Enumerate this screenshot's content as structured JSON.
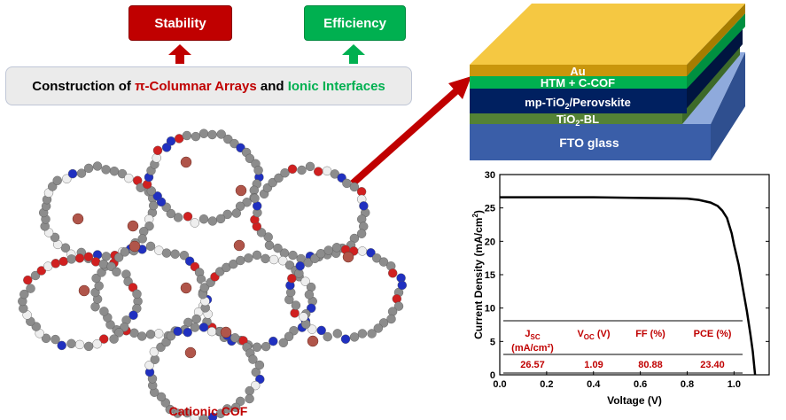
{
  "tags": {
    "stability": "Stability",
    "efficiency": "Efficiency",
    "stability_color": "#c00000",
    "efficiency_color": "#00b050"
  },
  "banner": {
    "prefix": "Construction of ",
    "part1": "π-Columnar Arrays",
    "middle": " and ",
    "part2": "Ionic Interfaces"
  },
  "structure": {
    "label": "Cationic COF"
  },
  "device": {
    "layers": [
      {
        "label": "Au",
        "color": "#d4a017"
      },
      {
        "label": "HTM + C-COF",
        "color": "#00b050"
      },
      {
        "label": "mp-TiO",
        "sub": "2",
        "suffix": "/Perovskite",
        "color": "#002060"
      },
      {
        "label": "TiO",
        "sub": "2",
        "suffix": "-BL",
        "color": "#548235"
      },
      {
        "label": "FTO glass",
        "color": "#3a5ea8"
      }
    ]
  },
  "chart_data": {
    "type": "line",
    "xlabel": "Voltage (V)",
    "ylabel": "Current Density (mA/cm",
    "ylabel_sup": "2",
    "ylabel_end": ")",
    "xlim": [
      0,
      1.15
    ],
    "ylim": [
      0,
      30
    ],
    "xticks": [
      "0.0",
      "0.2",
      "0.4",
      "0.6",
      "0.8",
      "1.0"
    ],
    "yticks": [
      "0",
      "5",
      "10",
      "15",
      "20",
      "25",
      "30"
    ],
    "series": [
      {
        "x": [
          0,
          0.2,
          0.4,
          0.6,
          0.8,
          0.85,
          0.9,
          0.93,
          0.95,
          0.97,
          0.99,
          1.0,
          1.02,
          1.04,
          1.055,
          1.07,
          1.08,
          1.09
        ],
        "y": [
          26.6,
          26.6,
          26.6,
          26.5,
          26.4,
          26.2,
          25.8,
          25.3,
          24.6,
          23.5,
          21.2,
          19.5,
          16.5,
          12.5,
          9.5,
          6,
          3.5,
          0
        ]
      }
    ],
    "table": {
      "headers": [
        {
          "main": "J",
          "sub": "SC",
          "line2": "(mA/cm²)"
        },
        {
          "main": "V",
          "sub": "OC",
          "after": " (V)"
        },
        {
          "main": "FF (%)"
        },
        {
          "main": "PCE (%)"
        }
      ],
      "values": [
        "26.57",
        "1.09",
        "80.88",
        "23.40"
      ],
      "color": "#c00000"
    }
  }
}
